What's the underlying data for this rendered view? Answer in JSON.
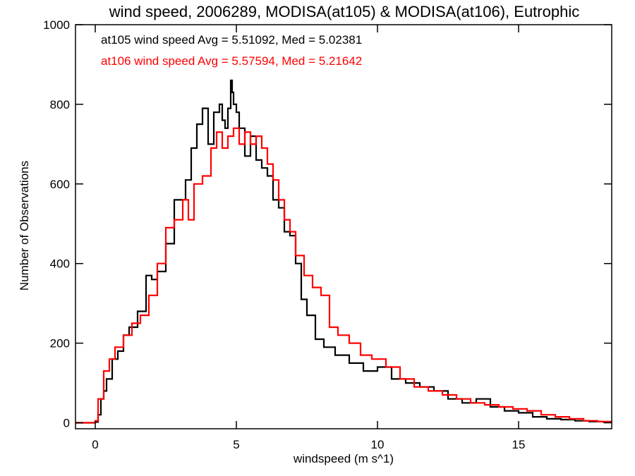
{
  "chart_data": {
    "type": "line",
    "step": true,
    "title": "wind speed, 2006289, MODISA(at105) & MODISA(at106), Eutrophic",
    "xlabel": "windspeed (m s^1)",
    "ylabel": "Number of Observations",
    "xlim": [
      -0.7,
      18.3
    ],
    "ylim": [
      -15,
      1000
    ],
    "xticks": [
      0,
      5,
      10,
      15
    ],
    "yticks": [
      0,
      200,
      400,
      600,
      800,
      1000
    ],
    "grid": false,
    "annotations": [
      {
        "text": "at105 wind speed Avg = 5.51092, Med = 5.02381",
        "color": "#000000"
      },
      {
        "text": "at106 wind speed Avg = 5.57594, Med = 5.21642",
        "color": "#ff0000"
      }
    ],
    "series": [
      {
        "color": "#000000",
        "x": [
          -0.7,
          0,
          0.1,
          0.2,
          0.3,
          0.4,
          0.5,
          0.6,
          0.8,
          1.0,
          1.2,
          1.5,
          1.8,
          2.0,
          2.2,
          2.5,
          2.8,
          3.0,
          3.2,
          3.4,
          3.6,
          3.8,
          4.0,
          4.2,
          4.4,
          4.5,
          4.6,
          4.7,
          4.8,
          4.85,
          4.9,
          5.0,
          5.1,
          5.3,
          5.5,
          5.7,
          5.9,
          6.1,
          6.3,
          6.5,
          6.7,
          6.9,
          7.1,
          7.3,
          7.5,
          7.8,
          8.1,
          8.5,
          9.0,
          9.5,
          10.0,
          10.5,
          11.0,
          11.5,
          12.0,
          12.5,
          13.0,
          13.5,
          14.0,
          14.5,
          15.0,
          15.5,
          16.0,
          16.5,
          17.0,
          17.5,
          18.0,
          18.3
        ],
        "y": [
          0,
          2,
          20,
          60,
          80,
          110,
          110,
          160,
          180,
          220,
          240,
          280,
          370,
          360,
          380,
          450,
          560,
          560,
          610,
          690,
          750,
          790,
          700,
          780,
          800,
          760,
          740,
          790,
          860,
          830,
          800,
          780,
          740,
          670,
          720,
          660,
          640,
          620,
          560,
          540,
          480,
          470,
          400,
          310,
          270,
          210,
          190,
          170,
          150,
          130,
          140,
          110,
          100,
          90,
          80,
          60,
          50,
          60,
          40,
          30,
          25,
          15,
          10,
          8,
          5,
          3,
          2,
          2
        ]
      },
      {
        "color": "#ff0000",
        "x": [
          -0.7,
          0,
          0.1,
          0.3,
          0.5,
          0.7,
          1.0,
          1.3,
          1.6,
          1.9,
          2.2,
          2.5,
          2.8,
          3.1,
          3.3,
          3.5,
          3.8,
          4.1,
          4.3,
          4.5,
          4.7,
          4.9,
          5.1,
          5.3,
          5.5,
          5.7,
          5.9,
          6.1,
          6.3,
          6.5,
          6.7,
          6.9,
          7.1,
          7.4,
          7.7,
          8.0,
          8.3,
          8.6,
          9.0,
          9.4,
          9.8,
          10.3,
          10.8,
          11.3,
          11.8,
          12.3,
          12.8,
          13.3,
          13.8,
          14.3,
          14.8,
          15.3,
          15.8,
          16.3,
          16.8,
          17.3,
          17.8,
          18.3
        ],
        "y": [
          0,
          5,
          60,
          130,
          160,
          190,
          220,
          250,
          270,
          320,
          400,
          490,
          510,
          560,
          510,
          600,
          620,
          690,
          730,
          690,
          720,
          740,
          700,
          730,
          700,
          720,
          690,
          650,
          610,
          560,
          510,
          480,
          420,
          370,
          340,
          320,
          240,
          220,
          200,
          170,
          160,
          140,
          110,
          90,
          80,
          70,
          60,
          50,
          45,
          40,
          35,
          30,
          20,
          15,
          10,
          5,
          3,
          2
        ]
      }
    ]
  }
}
